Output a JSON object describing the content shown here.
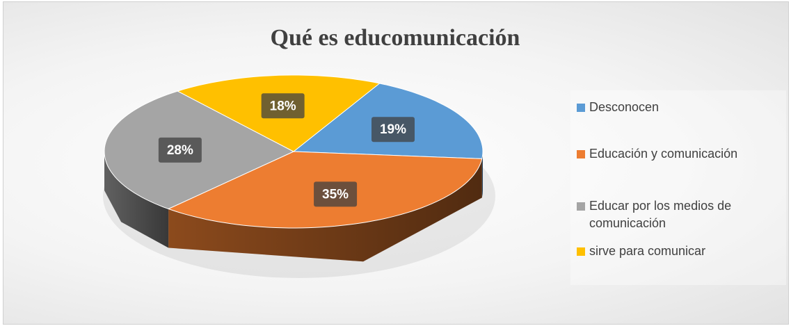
{
  "chart_data": {
    "type": "pie",
    "title": "Qué es educomunicación",
    "categories": [
      "Desconocen",
      "Educación y comunicación",
      "Educar por los medios de comunicación",
      "sirve para comunicar"
    ],
    "values": [
      19,
      35,
      28,
      18
    ],
    "value_labels": [
      "19%",
      "35%",
      "28%",
      "18%"
    ],
    "colors": [
      "#5b9bd5",
      "#ed7d31",
      "#a5a5a5",
      "#ffc000"
    ],
    "legend": "right"
  }
}
